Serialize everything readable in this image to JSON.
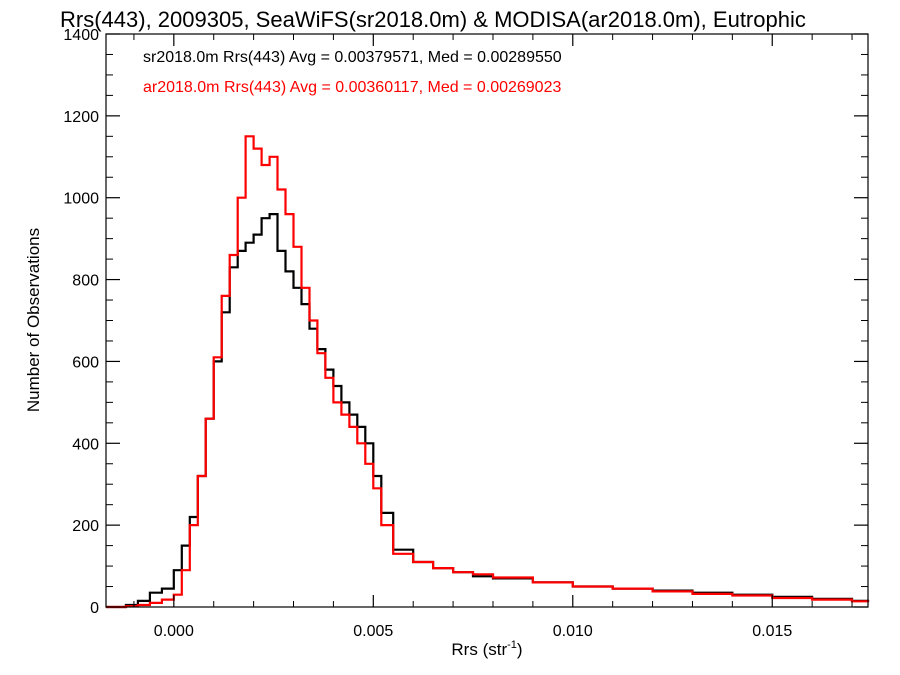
{
  "chart_data": {
    "type": "line",
    "title": "Rrs(443), 2009305, SeaWiFS(sr2018.0m) & MODISA(ar2018.0m), Eutrophic",
    "xlabel_main": "Rrs (str",
    "xlabel_sup": "-1",
    "xlabel_close": ")",
    "ylabel": "Number of Observations",
    "xlim": [
      -0.0017,
      0.0174
    ],
    "ylim": [
      0,
      1400
    ],
    "xticks": [
      0.0,
      0.005,
      0.01,
      0.015
    ],
    "xtick_labels": [
      "0.000",
      "0.005",
      "0.010",
      "0.015"
    ],
    "yticks": [
      0,
      200,
      400,
      600,
      800,
      1000,
      1200,
      1400
    ],
    "ytick_labels": [
      "0",
      "200",
      "400",
      "600",
      "800",
      "1000",
      "1200",
      "1400"
    ],
    "grid": false,
    "legend_position": "top-left",
    "series": [
      {
        "name": "sr2018.0m Rrs(443) Avg = 0.00379571, Med = 0.00289550",
        "color": "#000000",
        "x": [
          -0.0017,
          -0.0012,
          -0.0009,
          -0.0006,
          -0.0003,
          0.0,
          0.0002,
          0.0004,
          0.0006,
          0.0008,
          0.001,
          0.0012,
          0.0014,
          0.0016,
          0.0018,
          0.002,
          0.0022,
          0.0024,
          0.0026,
          0.0028,
          0.003,
          0.0032,
          0.0034,
          0.0036,
          0.0038,
          0.004,
          0.0042,
          0.0044,
          0.0046,
          0.0048,
          0.005,
          0.0052,
          0.0055,
          0.006,
          0.0065,
          0.007,
          0.0075,
          0.008,
          0.009,
          0.01,
          0.011,
          0.012,
          0.013,
          0.014,
          0.015,
          0.016,
          0.017,
          0.0174
        ],
        "y": [
          0,
          5,
          15,
          35,
          45,
          90,
          150,
          220,
          320,
          460,
          600,
          720,
          830,
          870,
          890,
          910,
          950,
          960,
          870,
          820,
          780,
          740,
          680,
          630,
          580,
          540,
          500,
          470,
          440,
          400,
          320,
          230,
          140,
          110,
          95,
          85,
          75,
          70,
          60,
          50,
          45,
          40,
          35,
          30,
          25,
          20,
          15,
          12
        ]
      },
      {
        "name": "ar2018.0m Rrs(443) Avg = 0.00360117, Med = 0.00269023",
        "color": "#ff0000",
        "x": [
          -0.0017,
          -0.0012,
          -0.0009,
          -0.0006,
          -0.0003,
          0.0,
          0.0002,
          0.0004,
          0.0006,
          0.0008,
          0.001,
          0.0012,
          0.0014,
          0.0016,
          0.0018,
          0.002,
          0.0022,
          0.0024,
          0.0026,
          0.0028,
          0.003,
          0.0032,
          0.0034,
          0.0036,
          0.0038,
          0.004,
          0.0042,
          0.0044,
          0.0046,
          0.0048,
          0.005,
          0.0052,
          0.0055,
          0.006,
          0.0065,
          0.007,
          0.0075,
          0.008,
          0.009,
          0.01,
          0.011,
          0.012,
          0.013,
          0.014,
          0.015,
          0.016,
          0.017,
          0.0174
        ],
        "y": [
          0,
          2,
          5,
          10,
          18,
          30,
          90,
          200,
          320,
          460,
          610,
          760,
          860,
          1000,
          1150,
          1120,
          1080,
          1100,
          1020,
          960,
          880,
          780,
          700,
          620,
          560,
          500,
          470,
          440,
          400,
          350,
          290,
          200,
          130,
          110,
          95,
          85,
          80,
          72,
          60,
          50,
          45,
          38,
          32,
          28,
          22,
          18,
          14,
          12
        ]
      }
    ]
  }
}
